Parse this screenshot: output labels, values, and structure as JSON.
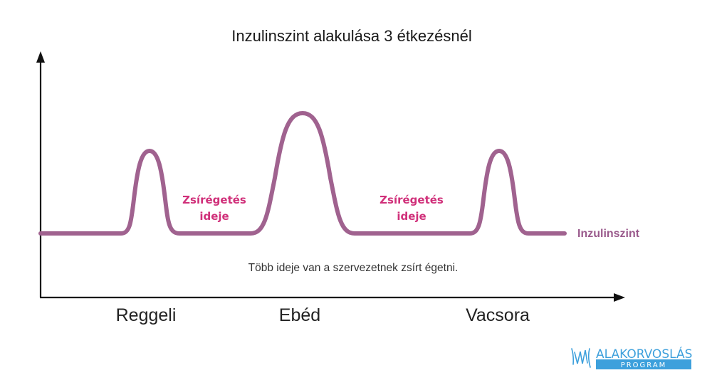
{
  "title": "Inzulinszint alakulása 3 étkezésnél",
  "series_label": "Inzulinszint",
  "fat_burning": [
    {
      "line1": "Zsírégetés",
      "line2": "ideje"
    },
    {
      "line1": "Zsírégetés",
      "line2": "ideje"
    }
  ],
  "note": "Több ideje van a szervezetnek zsírt égetni.",
  "meals": [
    "Reggeli",
    "Ebéd",
    "Vacsora"
  ],
  "logo": {
    "top": "ALAKORVOSLÁS",
    "bottom": "PROGRAM"
  },
  "colors": {
    "curve": "#A0628F",
    "fat_text": "#D0307A",
    "series_label": "#9A5A8C",
    "axis": "#111111",
    "logo_blue": "#3DA0DC"
  }
}
